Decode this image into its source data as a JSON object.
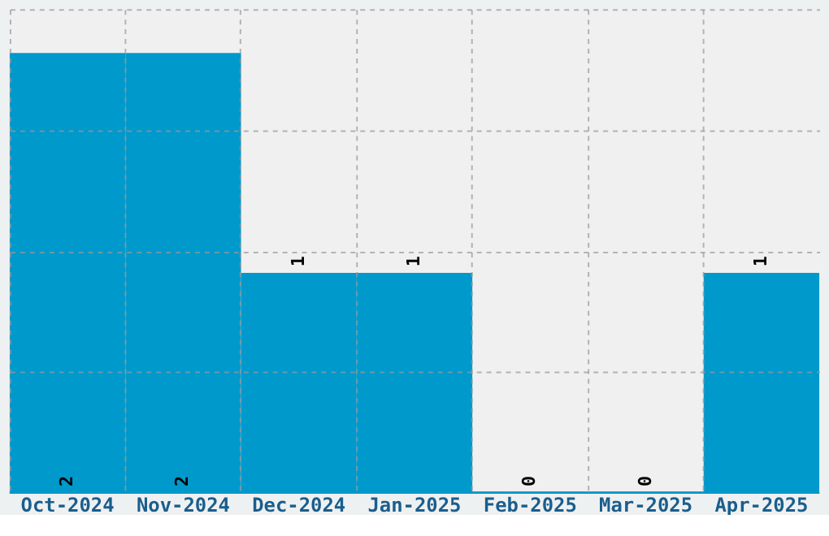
{
  "chart_data": {
    "type": "bar",
    "categories": [
      "Oct-2024",
      "Nov-2024",
      "Dec-2024",
      "Jan-2025",
      "Feb-2025",
      "Mar-2025",
      "Apr-2025"
    ],
    "values": [
      2,
      2,
      1,
      1,
      0,
      0,
      1
    ],
    "color": "#0099cc",
    "ylim": [
      0,
      2.2
    ],
    "yticks": [
      {
        "value": 0.55,
        "label": null
      },
      {
        "value": 1.1,
        "label": null
      },
      {
        "value": 1.65,
        "label": null
      },
      {
        "value": 2.2,
        "label": null
      }
    ],
    "tick_labels": "x",
    "grid": true,
    "data_labels": true
  }
}
